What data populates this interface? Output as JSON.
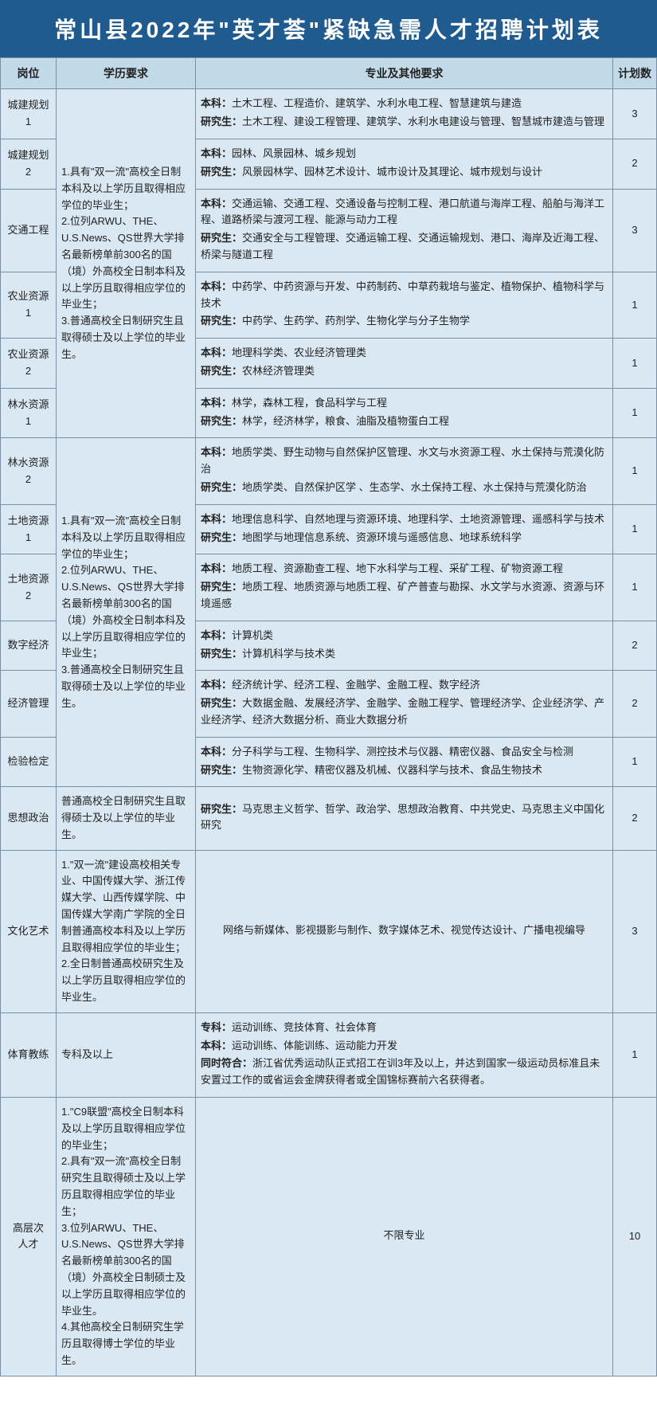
{
  "title": "常山县2022年\"英才荟\"紧缺急需人才招聘计划表",
  "headers": [
    "岗位",
    "学历要求",
    "专业及其他要求",
    "计划数"
  ],
  "eduA": "1.具有\"双一流\"高校全日制本科及以上学历且取得相应学位的毕业生；\n2.位列ARWU、THE、U.S.News、QS世界大学排名最新榜单前300名的国（境）外高校全日制本科及以上学历且取得相应学位的毕业生；\n3.普通高校全日制研究生且取得硕士及以上学位的毕业生。",
  "eduB": "普通高校全日制研究生且取得硕士及以上学位的毕业生。",
  "eduC": "1.\"双一流\"建设高校相关专业、中国传媒大学、浙江传媒大学、山西传媒学院、中国传媒大学南广学院的全日制普通高校本科及以上学历且取得相应学位的毕业生；\n2.全日制普通高校研究生及以上学历且取得相应学位的毕业生。",
  "eduD": "专科及以上",
  "eduE": "1.\"C9联盟\"高校全日制本科及以上学历且取得相应学位的毕业生；\n2.具有\"双一流\"高校全日制研究生且取得硕士及以上学历且取得相应学位的毕业生；\n3.位列ARWU、THE、U.S.News、QS世界大学排名最新榜单前300名的国（境）外高校全日制硕士及以上学历且取得相应学位的毕业生。\n4.其他高校全日制研究生学历且取得博士学位的毕业生。",
  "rows": [
    {
      "post": "城建规划1",
      "req": [
        [
          "本科：",
          "土木工程、工程造价、建筑学、水利水电工程、智慧建筑与建造"
        ],
        [
          "研究生：",
          "土木工程、建设工程管理、建筑学、水利水电建设与管理、智慧城市建造与管理"
        ]
      ],
      "count": 3
    },
    {
      "post": "城建规划2",
      "req": [
        [
          "本科：",
          "园林、风景园林、城乡规划"
        ],
        [
          "研究生：",
          "风景园林学、园林艺术设计、城市设计及其理论、城市规划与设计"
        ]
      ],
      "count": 2
    },
    {
      "post": "交通工程",
      "req": [
        [
          "本科：",
          "交通运输、交通工程、交通设备与控制工程、港口航道与海岸工程、船舶与海洋工程、道路桥梁与渡河工程、能源与动力工程"
        ],
        [
          "研究生：",
          "交通安全与工程管理、交通运输工程、交通运输规划、港口、海岸及近海工程、桥梁与隧道工程"
        ]
      ],
      "count": 3
    },
    {
      "post": "农业资源1",
      "req": [
        [
          "本科：",
          "中药学、中药资源与开发、中药制药、中草药栽培与鉴定、植物保护、植物科学与技术"
        ],
        [
          "研究生：",
          "中药学、生药学、药剂学、生物化学与分子生物学"
        ]
      ],
      "count": 1
    },
    {
      "post": "农业资源2",
      "req": [
        [
          "本科：",
          "地理科学类、农业经济管理类"
        ],
        [
          "研究生：",
          "农林经济管理类"
        ]
      ],
      "count": 1
    },
    {
      "post": "林水资源1",
      "req": [
        [
          "本科：",
          "林学，森林工程，食品科学与工程"
        ],
        [
          "研究生：",
          "林学，经济林学，粮食、油脂及植物蛋白工程"
        ]
      ],
      "count": 1
    },
    {
      "post": "林水资源2",
      "req": [
        [
          "本科：",
          "地质学类、野生动物与自然保护区管理、水文与水资源工程、水土保持与荒漠化防治"
        ],
        [
          "研究生：",
          "地质学类、自然保护区学 、生态学、水土保持工程、水土保持与荒漠化防治"
        ]
      ],
      "count": 1
    },
    {
      "post": "土地资源1",
      "req": [
        [
          "本科：",
          "地理信息科学、自然地理与资源环境、地理科学、土地资源管理、遥感科学与技术"
        ],
        [
          "研究生：",
          "地图学与地理信息系统、资源环境与遥感信息、地球系统科学"
        ]
      ],
      "count": 1
    },
    {
      "post": "土地资源2",
      "req": [
        [
          "本科：",
          "地质工程、资源勘查工程、地下水科学与工程、采矿工程、矿物资源工程"
        ],
        [
          "研究生：",
          "地质工程、地质资源与地质工程、矿产普查与勘探、水文学与水资源、资源与环境遥感"
        ]
      ],
      "count": 1
    },
    {
      "post": "数字经济",
      "req": [
        [
          "本科：",
          "计算机类"
        ],
        [
          "研究生：",
          "计算机科学与技术类"
        ]
      ],
      "count": 2
    },
    {
      "post": "经济管理",
      "req": [
        [
          "本科：",
          "经济统计学、经济工程、金融学、金融工程、数字经济"
        ],
        [
          "研究生：",
          "大数据金融、发展经济学、金融学、金融工程学、管理经济学、企业经济学、产业经济学、经济大数据分析、商业大数据分析"
        ]
      ],
      "count": 2
    },
    {
      "post": "检验检定",
      "req": [
        [
          "本科：",
          "分子科学与工程、生物科学、测控技术与仪器、精密仪器、食品安全与检测"
        ],
        [
          "研究生：",
          "生物资源化学、精密仪器及机械、仪器科学与技术、食品生物技术"
        ]
      ],
      "count": 1
    },
    {
      "post": "思想政治",
      "req": [
        [
          "研究生：",
          "马克思主义哲学、哲学、政治学、思想政治教育、中共党史、马克思主义中国化研究"
        ]
      ],
      "count": 2
    },
    {
      "post": "文化艺术",
      "req": [
        [
          "",
          "网络与新媒体、影视摄影与制作、数字媒体艺术、视觉传达设计、广播电视编导"
        ]
      ],
      "count": 3
    },
    {
      "post": "体育教练",
      "req": [
        [
          "专科：",
          "运动训练、竞技体育、社会体育"
        ],
        [
          "本科：",
          "运动训练、体能训练、运动能力开发"
        ],
        [
          "同时符合：",
          "浙江省优秀运动队正式招工在训3年及以上，并达到国家一级运动员标准且未安置过工作的或省运会金牌获得者或全国锦标赛前六名获得者。"
        ]
      ],
      "count": 1
    },
    {
      "post": "高层次\n人才",
      "req": [
        [
          "",
          "不限专业"
        ]
      ],
      "count": 10
    }
  ]
}
